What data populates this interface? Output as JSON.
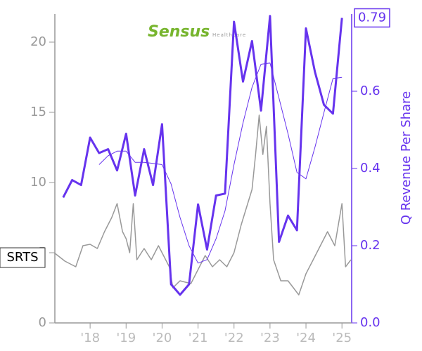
{
  "chart_data": {
    "type": "line",
    "ticker": "SRTS",
    "logo": {
      "name": "Sensus",
      "tagline": "Healthcare"
    },
    "y2_label": "Q Revenue Per Share",
    "xlim": [
      2017.02,
      2025.27
    ],
    "xticks": [
      {
        "value": 2018,
        "label": "'18"
      },
      {
        "value": 2019,
        "label": "'19"
      },
      {
        "value": 2020,
        "label": "'20"
      },
      {
        "value": 2021,
        "label": "'21"
      },
      {
        "value": 2022,
        "label": "'22"
      },
      {
        "value": 2023,
        "label": "'23"
      },
      {
        "value": 2024,
        "label": "'24"
      },
      {
        "value": 2025,
        "label": "'25"
      }
    ],
    "ylim": [
      0,
      22
    ],
    "yticks": [
      0,
      5,
      10,
      15,
      20
    ],
    "y2lim": [
      0,
      0.8
    ],
    "y2ticks": [
      {
        "value": 0,
        "label": "0.0"
      },
      0.2,
      0.4,
      0.6
    ],
    "series": [
      {
        "color": "#999999",
        "axis": "y",
        "width": 1.5,
        "x": [
          2017.0,
          2017.3,
          2017.6,
          2017.8,
          2018.0,
          2018.2,
          2018.4,
          2018.6,
          2018.75,
          2018.9,
          2019.0,
          2019.1,
          2019.2,
          2019.3,
          2019.5,
          2019.7,
          2019.9,
          2020.0,
          2020.2,
          2020.3,
          2020.5,
          2020.8,
          2021.0,
          2021.2,
          2021.4,
          2021.6,
          2021.8,
          2022.0,
          2022.2,
          2022.5,
          2022.6,
          2022.7,
          2022.8,
          2022.9,
          2023.0,
          2023.1,
          2023.3,
          2023.5,
          2023.8,
          2024.0,
          2024.2,
          2024.4,
          2024.6,
          2024.8,
          2025.0,
          2025.1,
          2025.25
        ],
        "values": [
          5.0,
          4.4,
          4.0,
          5.5,
          5.6,
          5.3,
          6.5,
          7.5,
          8.5,
          6.5,
          6.0,
          5.0,
          8.5,
          4.5,
          5.3,
          4.5,
          5.5,
          5.0,
          4.0,
          2.5,
          3.0,
          2.8,
          3.8,
          4.8,
          4.0,
          4.5,
          4.0,
          5.0,
          7.0,
          9.5,
          12,
          14.8,
          12,
          14,
          8.5,
          4.5,
          3.0,
          3.0,
          2.0,
          3.5,
          4.5,
          5.5,
          6.5,
          5.5,
          8.5,
          4.0,
          4.5
        ]
      },
      {
        "color": "#6633ee",
        "axis": "y2",
        "width": 1,
        "x": [
          2017.25,
          2017.5,
          2017.75,
          2018.0,
          2018.25,
          2018.5,
          2018.75,
          2019.0,
          2019.25,
          2019.5,
          2019.75,
          2020.0,
          2020.25,
          2020.5,
          2020.75,
          2021.0,
          2021.25,
          2021.5,
          2021.75,
          2022.0,
          2022.25,
          2022.5,
          2022.75,
          2023.0,
          2023.25,
          2023.5,
          2023.75,
          2024.0,
          2024.25,
          2024.5,
          2024.75,
          2025.0
        ],
        "values": [
          null,
          null,
          null,
          null,
          0.41,
          0.433,
          0.445,
          0.445,
          0.416,
          0.416,
          0.413,
          0.41,
          0.36,
          0.273,
          0.2,
          0.155,
          0.164,
          0.218,
          0.29,
          0.41,
          0.518,
          0.61,
          0.67,
          0.673,
          0.582,
          0.49,
          0.39,
          0.373,
          0.455,
          0.545,
          0.633,
          0.636
        ]
      },
      {
        "color": "#6633ee",
        "axis": "y2",
        "width": 3,
        "x": [
          2017.25,
          2017.5,
          2017.75,
          2018.0,
          2018.25,
          2018.5,
          2018.75,
          2019.0,
          2019.25,
          2019.5,
          2019.75,
          2020.0,
          2020.25,
          2020.5,
          2020.75,
          2021.0,
          2021.25,
          2021.5,
          2021.75,
          2022.0,
          2022.25,
          2022.5,
          2022.75,
          2023.0,
          2023.25,
          2023.5,
          2023.75,
          2024.0,
          2024.25,
          2024.5,
          2024.75,
          2025.0
        ],
        "values": [
          0.325,
          0.37,
          0.357,
          0.48,
          0.44,
          0.45,
          0.395,
          0.49,
          0.33,
          0.45,
          0.357,
          0.515,
          0.1,
          0.073,
          0.1,
          0.307,
          0.19,
          0.33,
          0.335,
          0.78,
          0.625,
          0.73,
          0.55,
          0.795,
          0.21,
          0.278,
          0.24,
          0.763,
          0.65,
          0.565,
          0.542,
          0.79
        ],
        "value_labels": [
          null,
          null,
          null,
          null,
          null,
          null,
          null,
          null,
          null,
          null,
          null,
          null,
          null,
          null,
          null,
          null,
          null,
          null,
          null,
          null,
          null,
          null,
          null,
          null,
          null,
          null,
          null,
          null,
          null,
          null,
          null,
          "0.79"
        ]
      }
    ]
  }
}
